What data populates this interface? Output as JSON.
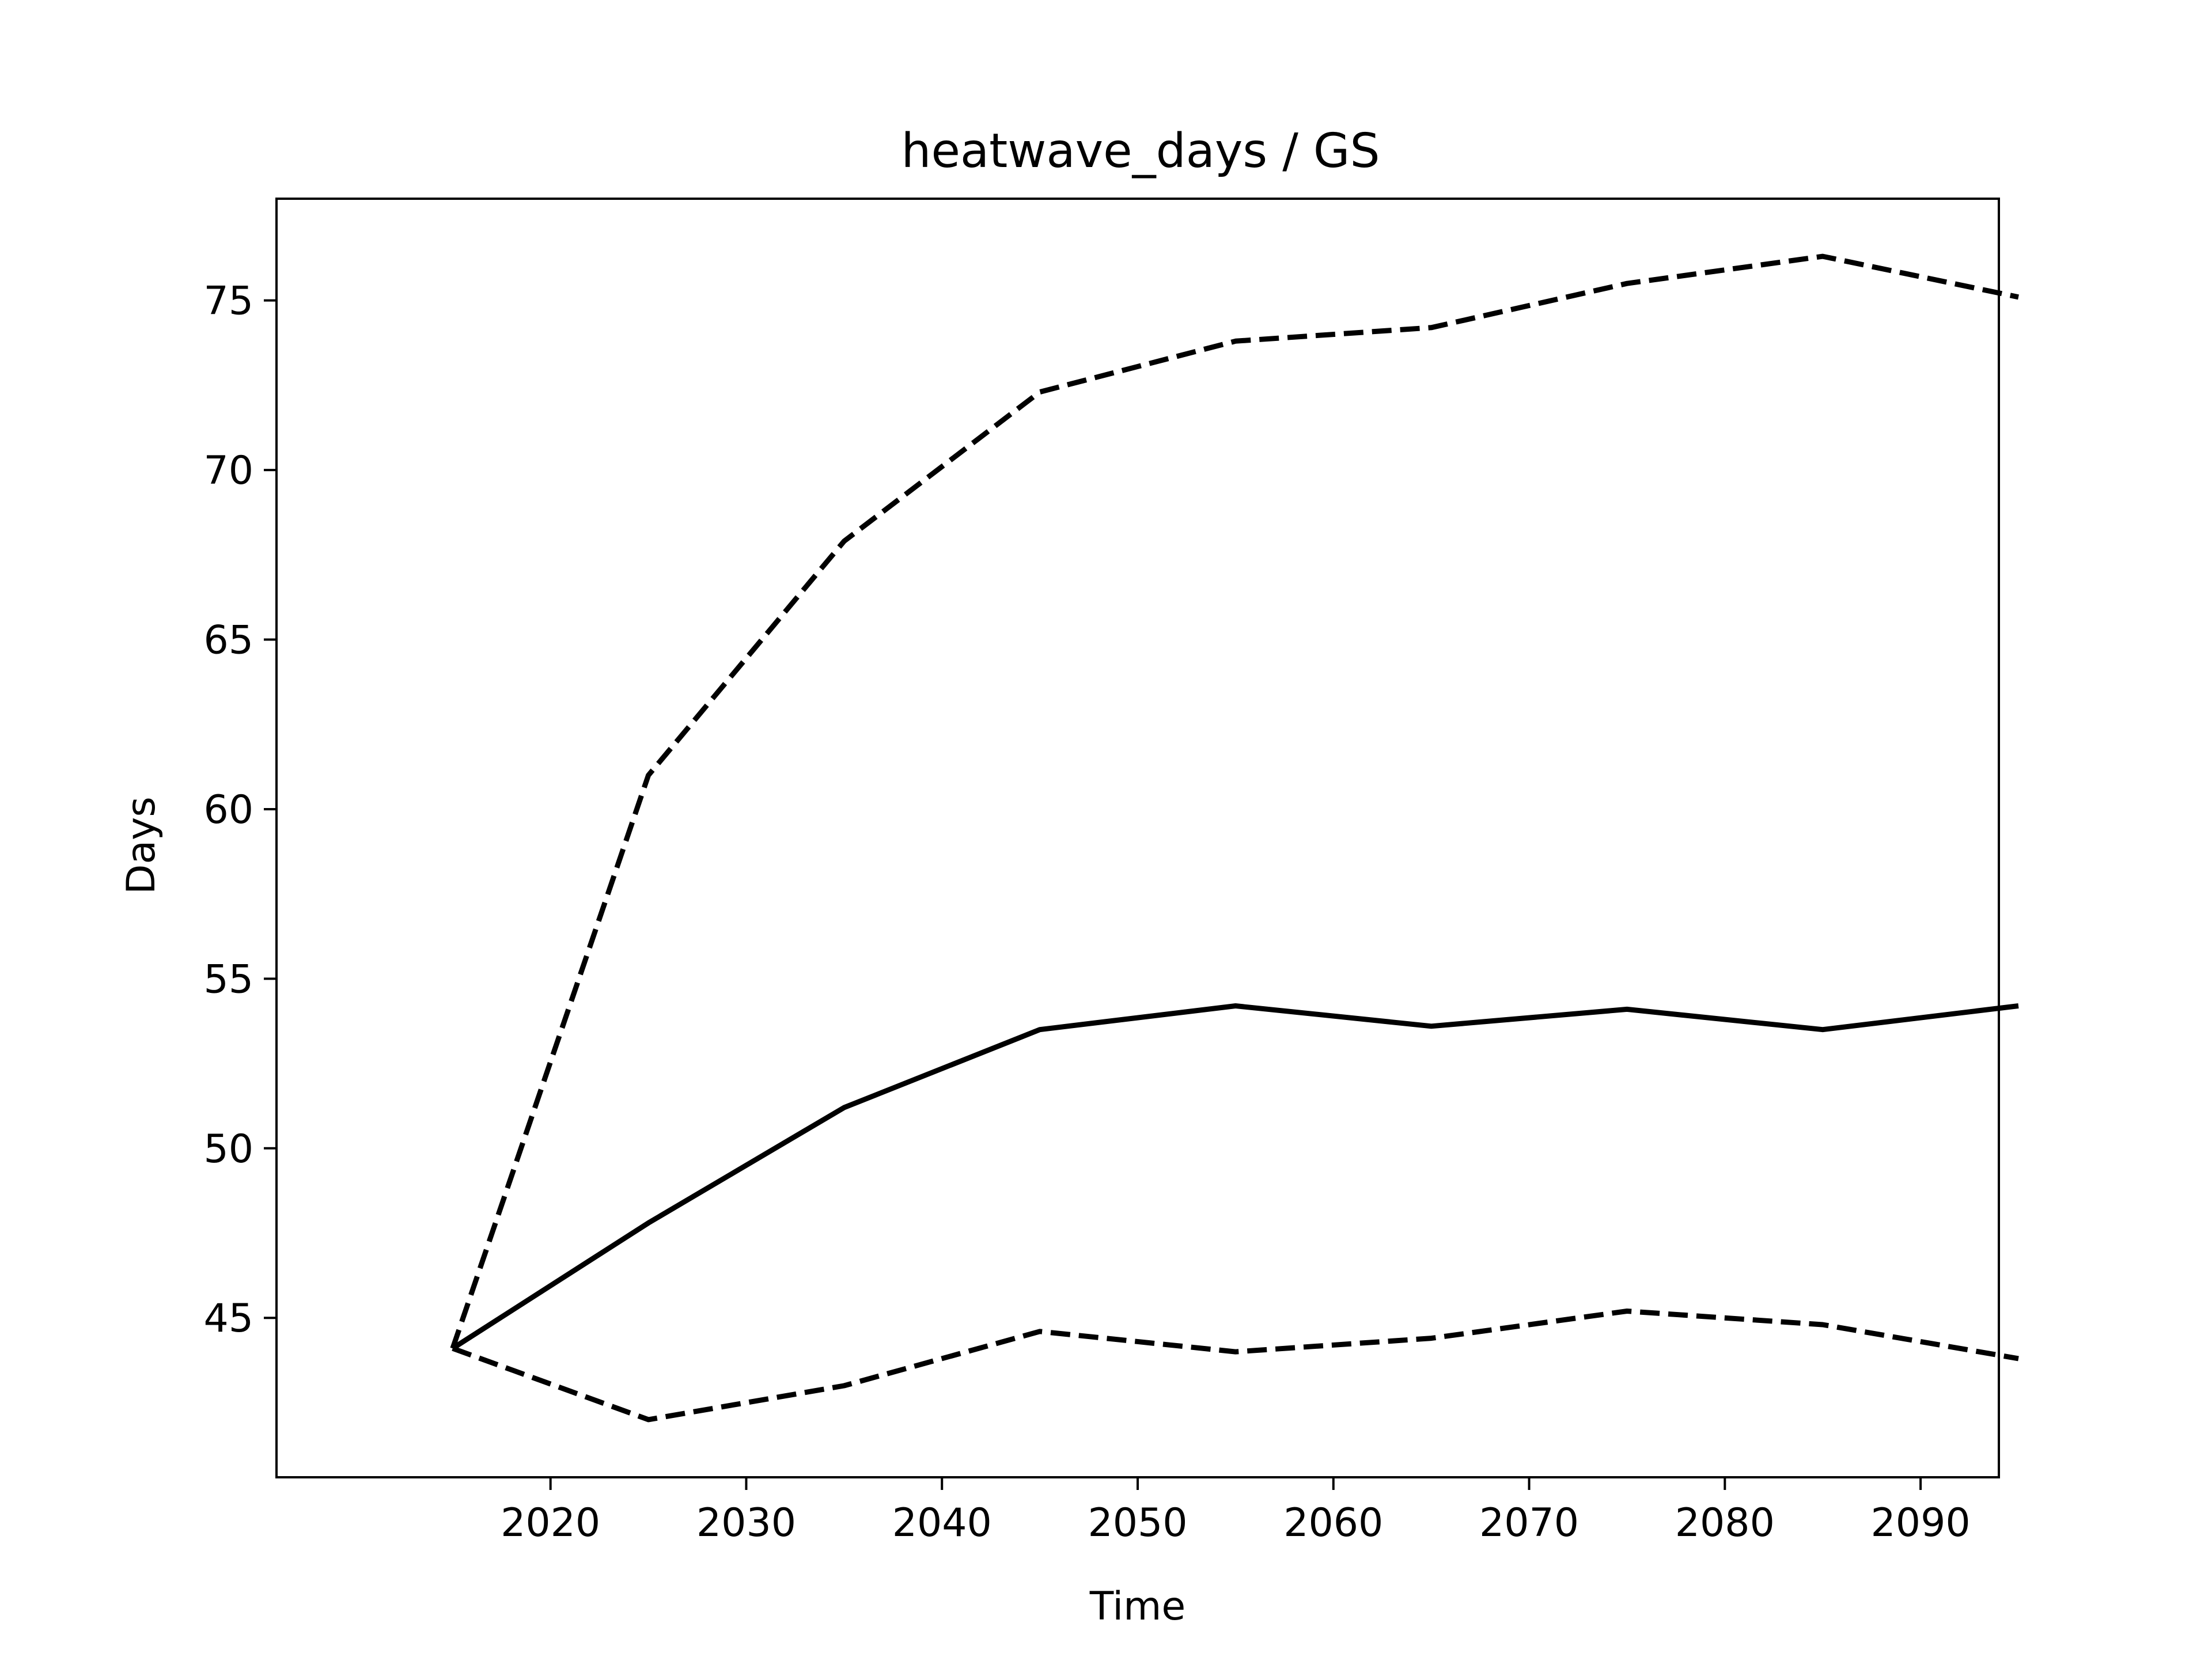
{
  "chart_data": {
    "type": "line",
    "title": "heatwave_days / GS",
    "xlabel": "Time",
    "ylabel": "Days",
    "x": [
      2015,
      2025,
      2035,
      2045,
      2055,
      2065,
      2075,
      2085,
      2095
    ],
    "xlim": [
      2006,
      2094
    ],
    "ylim": [
      40.3,
      78.0
    ],
    "xticks": [
      2020,
      2030,
      2040,
      2050,
      2060,
      2070,
      2080,
      2090
    ],
    "yticks": [
      45,
      50,
      55,
      60,
      65,
      70,
      75
    ],
    "grid": false,
    "legend": "none",
    "series": [
      {
        "line_style": "dashed",
        "color": "#000000",
        "values": [
          44.1,
          61.0,
          67.9,
          72.3,
          73.8,
          74.2,
          75.5,
          76.3,
          75.1
        ]
      },
      {
        "line_style": "solid",
        "color": "#000000",
        "values": [
          44.1,
          47.8,
          51.2,
          53.5,
          54.2,
          53.6,
          54.1,
          53.5,
          54.2
        ]
      },
      {
        "line_style": "dashed",
        "color": "#000000",
        "values": [
          44.1,
          42.0,
          43.0,
          44.6,
          44.0,
          44.4,
          45.2,
          44.8,
          43.8
        ]
      }
    ]
  }
}
